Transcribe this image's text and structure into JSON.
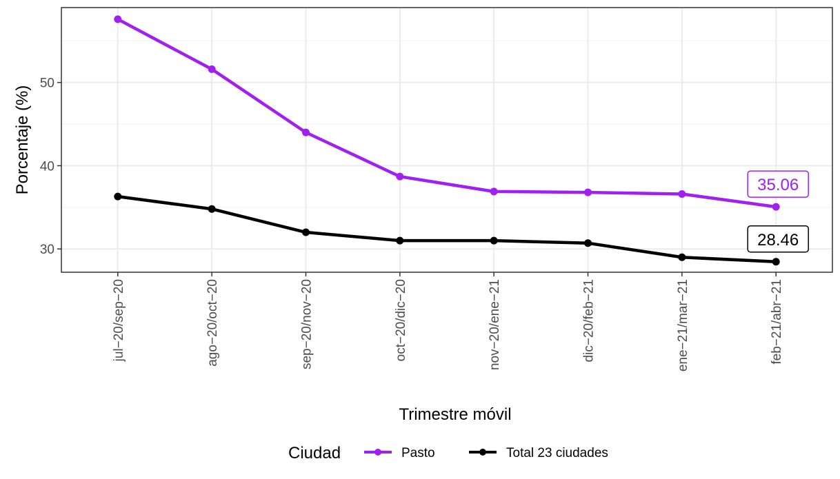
{
  "chart_data": {
    "type": "line",
    "title": "",
    "xlabel": "Trimestre móvil",
    "ylabel": "Porcentaje (%)",
    "categories": [
      "jul-20/sep-20",
      "ago-20/oct-20",
      "sep-20/nov-20",
      "oct-20/dic-20",
      "nov-20/ene-21",
      "dic-20/feb-21",
      "ene-21/mar-21",
      "feb-21/abr-21"
    ],
    "x_tick_labels": [
      "jul−20/sep−20",
      "ago−20/oct−20",
      "sep−20/nov−20",
      "oct−20/dic−20",
      "nov−20/ene−21",
      "dic−20/feb−21",
      "ene−21/mar−21",
      "feb−21/abr−21"
    ],
    "ylim": [
      27.2,
      59.0
    ],
    "yticks": [
      30,
      40,
      50
    ],
    "grid": true,
    "legend": {
      "title": "Ciudad",
      "position": "bottom"
    },
    "series": [
      {
        "name": "Pasto",
        "color": "#a020f0",
        "values": [
          57.6,
          51.6,
          44.0,
          38.7,
          36.9,
          36.8,
          36.6,
          35.06
        ],
        "end_label": "35.06"
      },
      {
        "name": "Total 23 ciudades",
        "color": "#000000",
        "values": [
          36.3,
          34.8,
          32.0,
          31.0,
          31.0,
          30.7,
          29.0,
          28.46
        ],
        "end_label": "28.46"
      }
    ]
  }
}
